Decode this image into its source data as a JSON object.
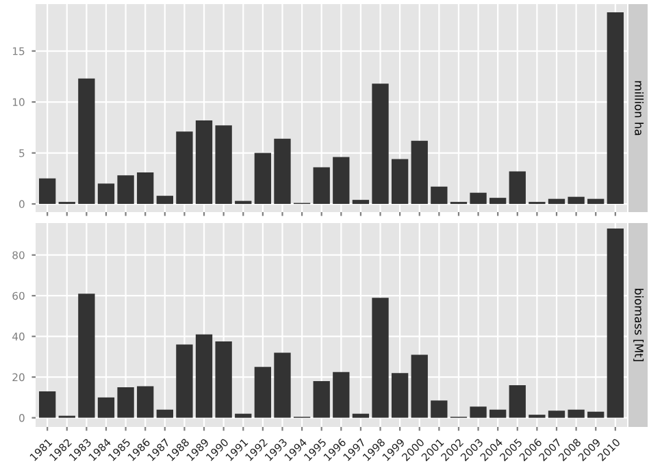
{
  "chart_data": [
    {
      "type": "bar",
      "ylabel": "million ha",
      "categories": [
        "1981",
        "1982",
        "1983",
        "1984",
        "1985",
        "1986",
        "1987",
        "1988",
        "1989",
        "1990",
        "1991",
        "1992",
        "1993",
        "1994",
        "1995",
        "1996",
        "1997",
        "1998",
        "1999",
        "2000",
        "2001",
        "2002",
        "2003",
        "2004",
        "2005",
        "2006",
        "2007",
        "2008",
        "2009",
        "2010"
      ],
      "values": [
        2.5,
        0.2,
        12.3,
        2.0,
        2.8,
        3.1,
        0.8,
        7.1,
        8.2,
        7.7,
        0.3,
        5.0,
        6.4,
        0.1,
        3.6,
        4.6,
        0.4,
        11.8,
        4.4,
        6.2,
        1.7,
        0.2,
        1.1,
        0.6,
        3.2,
        0.2,
        0.5,
        0.7,
        0.5,
        18.8
      ],
      "color": "#333333",
      "ylim": [
        -0.8,
        19.6
      ],
      "yticks": [
        0,
        5,
        10,
        15
      ],
      "grid": true,
      "tick_labels": "y"
    },
    {
      "type": "bar",
      "ylabel": "biomass [Mt]",
      "categories": [
        "1981",
        "1982",
        "1983",
        "1984",
        "1985",
        "1986",
        "1987",
        "1988",
        "1989",
        "1990",
        "1991",
        "1992",
        "1993",
        "1994",
        "1995",
        "1996",
        "1997",
        "1998",
        "1999",
        "2000",
        "2001",
        "2002",
        "2003",
        "2004",
        "2005",
        "2006",
        "2007",
        "2008",
        "2009",
        "2010"
      ],
      "values": [
        13,
        1,
        61,
        10,
        15,
        15.5,
        4,
        36,
        41,
        37.5,
        2,
        25,
        32,
        0.5,
        18,
        22.5,
        2,
        59,
        22,
        31,
        8.5,
        0.5,
        5.5,
        4,
        16,
        1.5,
        3.5,
        4,
        3,
        93
      ],
      "color": "#333333",
      "ylim": [
        -4.5,
        95.7
      ],
      "yticks": [
        0,
        20,
        40,
        60,
        80
      ],
      "grid": true
    }
  ]
}
